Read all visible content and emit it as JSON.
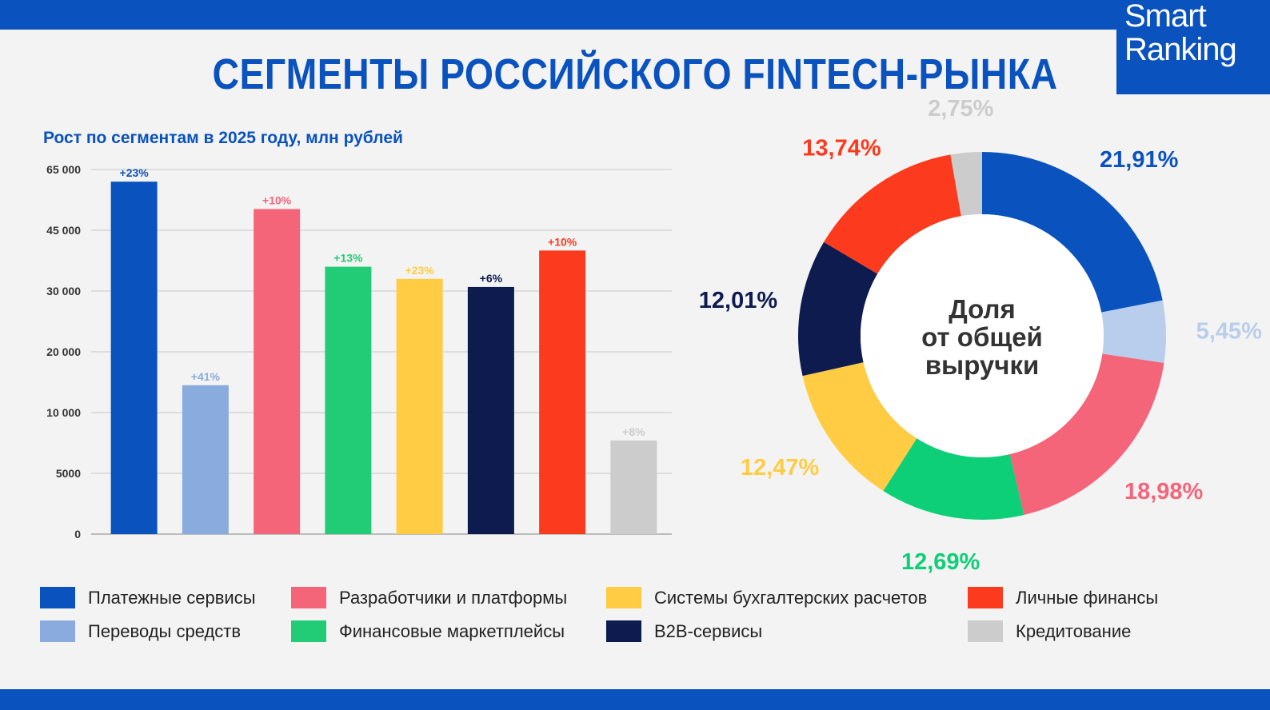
{
  "header": {
    "title": "СЕГМЕНТЫ РОССИЙСКОГО FINTECH-РЫНКА",
    "logo_line1": "Smart",
    "logo_line2": "Ranking"
  },
  "colors": {
    "brand": "#0a52be",
    "payments": "#0a52be",
    "transfers": "#8aabdd",
    "developers": "#f4657a",
    "marketplaces": "#22cc77",
    "accounting": "#ffcc44",
    "b2b": "#0d1b4f",
    "personal": "#fb3a1e",
    "credit": "#cccccc"
  },
  "legend": [
    {
      "label": "Платежные сервисы",
      "color": "#0a52be"
    },
    {
      "label": "Переводы средств",
      "color": "#8aabdd"
    },
    {
      "label": "Разработчики и платформы",
      "color": "#f4657a"
    },
    {
      "label": "Финансовые маркетплейсы",
      "color": "#22cc77"
    },
    {
      "label": "Системы бухгалтерских расчетов",
      "color": "#ffcc44"
    },
    {
      "label": "B2B-сервисы",
      "color": "#0d1b4f"
    },
    {
      "label": "Личные финансы",
      "color": "#fb3a1e"
    },
    {
      "label": "Кредитование",
      "color": "#cccccc"
    }
  ],
  "chart_data": [
    {
      "type": "bar",
      "title": "Рост по сегментам в 2025 году, млн рублей",
      "categories": [
        "Платежные сервисы",
        "Переводы средств",
        "Разработчики и платформы",
        "Финансовые маркетплейсы",
        "Системы бухгалтерских расчетов",
        "B2B-сервисы",
        "Личные финансы",
        "Кредитование"
      ],
      "values": [
        61000,
        14500,
        52000,
        36000,
        33000,
        31000,
        40000,
        7700
      ],
      "data_labels": [
        "+23%",
        "+41%",
        "+10%",
        "+13%",
        "+23%",
        "+6%",
        "+10%",
        "+8%"
      ],
      "colors": [
        "#0a52be",
        "#8aabdd",
        "#f4657a",
        "#22cc77",
        "#ffcc44",
        "#0d1b4f",
        "#fb3a1e",
        "#cccccc"
      ],
      "yticks": [
        0,
        5000,
        10000,
        20000,
        30000,
        45000,
        65000
      ],
      "ytick_labels": [
        "0",
        "5000",
        "10 000",
        "20 000",
        "30 000",
        "45 000",
        "65 000"
      ],
      "grid": true,
      "xlabel": "",
      "ylabel": ""
    },
    {
      "type": "pie",
      "center_label": [
        "Доля",
        "от общей",
        "выручки"
      ],
      "slices": [
        {
          "label": "21,91%",
          "value": 21.91,
          "color": "#0a52be"
        },
        {
          "label": "5,45%",
          "value": 5.45,
          "color": "#b9cdec"
        },
        {
          "label": "18,98%",
          "value": 18.98,
          "color": "#f4657a"
        },
        {
          "label": "12,69%",
          "value": 12.69,
          "color": "#0dcf77"
        },
        {
          "label": "12,47%",
          "value": 12.47,
          "color": "#ffcc44"
        },
        {
          "label": "12,01%",
          "value": 12.01,
          "color": "#0d1b4f"
        },
        {
          "label": "13,74%",
          "value": 13.74,
          "color": "#fb3a1e"
        },
        {
          "label": "2,75%",
          "value": 2.75,
          "color": "#cccccc"
        }
      ]
    }
  ]
}
